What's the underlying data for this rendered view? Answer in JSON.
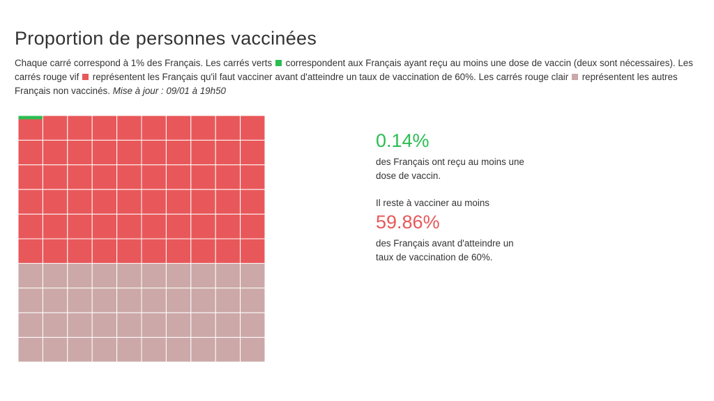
{
  "header": {
    "title": "Proportion de personnes vaccinées"
  },
  "description": {
    "part1": "Chaque carré correspond à 1% des Français. Les carrés verts",
    "part2": "correspondent aux Français ayant reçu au moins une dose de vaccin (deux sont nécessaires). Les carrés rouge vif",
    "part3": "représentent les Français qu'il faut vacciner avant d'atteindre un taux de vaccination de 60%. Les carrés rouge clair",
    "part4": "représentent les autres Français non vaccinés.",
    "update": "Mise à jour : 09/01 à 19h50"
  },
  "stats": {
    "vaccinated_value": "0.14%",
    "vaccinated_text": "des Français ont reçu au moins une dose de vaccin.",
    "remaining_label": "Il reste à vacciner au moins",
    "remaining_value": "59.86%",
    "remaining_text": "des Français avant d'atteindre un taux de vaccination de 60%."
  },
  "colors": {
    "green": "#2bbd52",
    "bright_red": "#e8585a",
    "light_red": "#cca8a8",
    "grid": "#ffffff",
    "text": "#333333"
  },
  "chart_data": {
    "type": "waffle",
    "grid": [
      10,
      10
    ],
    "unit_percent": 1,
    "series": [
      {
        "key": "vaccinated",
        "value": 0.14,
        "color": "#2bbd52"
      },
      {
        "key": "to_vaccinate_before_60",
        "value": 59.86,
        "color": "#e8585a"
      },
      {
        "key": "other_unvaccinated",
        "value": 40,
        "color": "#cca8a8"
      }
    ],
    "total": 100
  }
}
